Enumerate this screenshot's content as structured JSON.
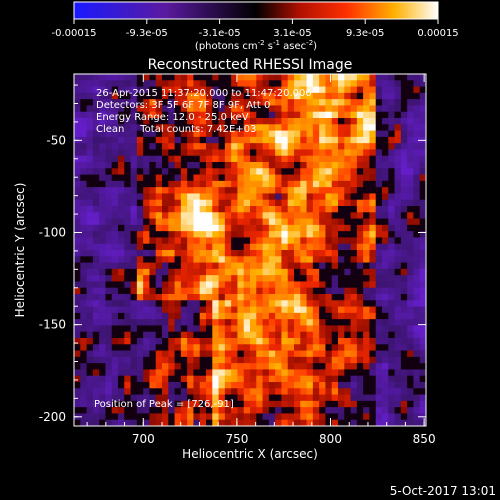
{
  "chart_data": {
    "type": "heatmap",
    "title": "Reconstructed RHESSI Image",
    "xlabel": "Heliocentric X (arcsec)",
    "ylabel": "Heliocentric Y (arcsec)",
    "xlim": [
      663,
      851
    ],
    "ylim": [
      -205,
      -14
    ],
    "x_ticks": [
      700,
      750,
      800,
      850
    ],
    "y_ticks": [
      -50,
      -100,
      -150,
      -200
    ],
    "colorbar": {
      "ticks": [
        "-0.00015",
        "-9.3e-05",
        "-3.1e-05",
        "3.1e-05",
        "9.3e-05",
        "0.00015"
      ],
      "range": [
        -0.00015,
        0.00015
      ],
      "unit_prefix": "(photons cm",
      "unit_exp1": "-2",
      "unit_mid": " s",
      "unit_exp2": "-1",
      "unit_suffix": " asec",
      "unit_exp3": "-2",
      "unit_close": ")"
    },
    "annotations": [
      "26-Apr-2015 11:37:20.000 to 11:47:20.000",
      "Detectors: 3F 5F 6F 7F 8F 9F, Att 0",
      "Energy Range: 12.0 - 25.0 keV",
      "Clean     Total counts: 7.42E+03"
    ],
    "peak_label": "Position of Peak = [726,-91]",
    "peak": [
      726,
      -91
    ],
    "grid": false
  },
  "footer": {
    "date": "5-Oct-2017 13:01"
  }
}
